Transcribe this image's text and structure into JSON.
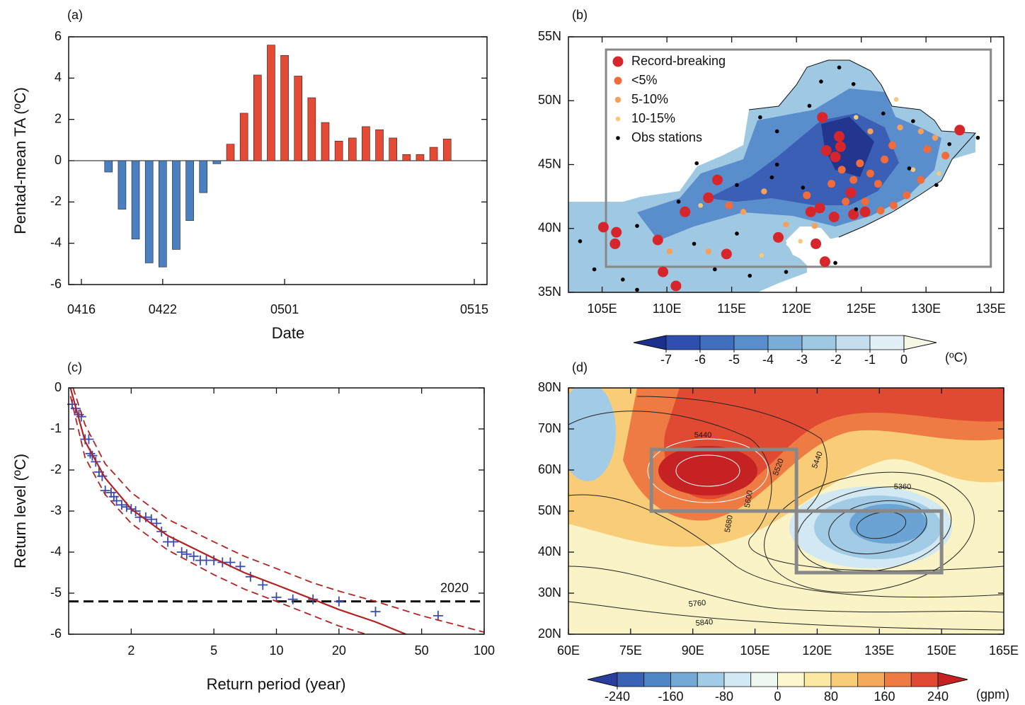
{
  "chart_data": [
    {
      "type": "bar",
      "panel": "(a)",
      "ylabel": "Pentad-mean TA (ºC)",
      "xlabel": "Date",
      "categories": [
        "0416",
        null,
        null,
        null,
        null,
        null,
        "0422",
        null,
        null,
        null,
        null,
        null,
        null,
        null,
        null,
        "0501",
        null,
        null,
        null,
        null,
        null,
        null,
        null,
        null,
        null,
        null,
        null,
        null,
        null,
        "0515"
      ],
      "values": [
        null,
        null,
        -0.55,
        -2.35,
        -3.8,
        -4.95,
        -5.15,
        -4.3,
        -2.9,
        -1.55,
        -0.15,
        0.8,
        2.3,
        4.15,
        5.6,
        5.1,
        4.1,
        3.05,
        1.85,
        0.95,
        1.1,
        1.65,
        1.5,
        1.1,
        0.3,
        0.3,
        0.65,
        1.05,
        null,
        null
      ],
      "colors": {
        "positive": "#e54b34",
        "negative": "#4a7fc0"
      },
      "ylim": [
        -6,
        6
      ],
      "yticks": [
        -6,
        -4,
        -2,
        0,
        2,
        4,
        6
      ]
    },
    {
      "type": "map",
      "panel": "(b)",
      "xlim": [
        102.4,
        136
      ],
      "ylim": [
        35,
        55
      ],
      "xticks": [
        {
          "value": 105,
          "label": "105E"
        },
        {
          "value": 110,
          "label": "110E"
        },
        {
          "value": 115,
          "label": "115E"
        },
        {
          "value": 120,
          "label": "120E"
        },
        {
          "value": 125,
          "label": "125E"
        },
        {
          "value": 130,
          "label": "130E"
        },
        {
          "value": 135,
          "label": "135E"
        }
      ],
      "yticks": [
        {
          "value": 35,
          "label": "35N"
        },
        {
          "value": 40,
          "label": "40N"
        },
        {
          "value": 45,
          "label": "45N"
        },
        {
          "value": 50,
          "label": "50N"
        },
        {
          "value": 55,
          "label": "55N"
        }
      ],
      "legend": "upper left",
      "series": [
        {
          "name": "Record-breaking",
          "color": "#d7262b",
          "size": 7.5,
          "x": [
            105.1,
            106.1,
            106.0,
            109.3,
            109.7,
            110.7,
            111.4,
            113.2,
            113.9,
            114.6,
            118.6,
            121.1,
            121.8,
            122.0,
            122.3,
            123.0,
            123.3,
            123.4,
            124.4,
            121.5,
            122.2,
            124.2,
            125.3,
            122.9,
            132.6
          ],
          "values": [
            40.1,
            39.7,
            38.8,
            39.1,
            36.6,
            35.5,
            41.3,
            42.4,
            43.8,
            38.0,
            39.3,
            41.3,
            41.6,
            48.7,
            46.1,
            45.6,
            47.2,
            46.4,
            41.1,
            38.8,
            37.4,
            42.8,
            41.3,
            40.9,
            47.7
          ]
        },
        {
          "name": "<5%",
          "color": "#f26b3a",
          "size": 5.5,
          "x": [
            123.5,
            124.9,
            125.7,
            126.3,
            126.8,
            124.4,
            125.3,
            127.5,
            128.5,
            126.5,
            129.6,
            122.7,
            123.8,
            130.1,
            131.5,
            114.8,
            120.8,
            127.4
          ],
          "values": [
            44.6,
            45.1,
            44.3,
            43.5,
            45.4,
            43.8,
            42.1,
            41.8,
            42.6,
            41.4,
            43.8,
            43.5,
            42.1,
            46.2,
            45.7,
            41.8,
            42.6,
            46.5
          ]
        },
        {
          "name": "5-10%",
          "color": "#f5a05a",
          "size": 4.2,
          "x": [
            115.9,
            119.2,
            128.0,
            130.7,
            113.2,
            110.2,
            117.5,
            125.7,
            129.6,
            121.4
          ],
          "values": [
            41.3,
            40.3,
            47.9,
            47.1,
            38.2,
            38.2,
            42.9,
            47.6,
            47.6,
            40.2
          ]
        },
        {
          "name": "10-15%",
          "color": "#f8c878",
          "size": 3.3,
          "x": [
            127.7,
            120.3,
            117.3,
            112.6,
            124.6,
            129.0,
            131.0
          ],
          "values": [
            50.1,
            39.0,
            37.9,
            41.8,
            48.7,
            44.6,
            44.3
          ]
        },
        {
          "name": "Obs stations",
          "color": "#000000",
          "size": 2.8,
          "x": [
            117.2,
            118.5,
            121.0,
            121.9,
            124.4,
            123.3,
            126.7,
            129.0,
            131.8,
            134.0,
            118.5,
            120.5,
            128.7,
            130.8,
            115.4,
            112.3,
            110.9,
            107.7,
            103.3,
            104.4,
            106.6,
            107.7,
            113.7,
            116.4,
            119.2,
            123.0,
            115.4,
            112.1,
            118.1,
            124.6
          ],
          "values": [
            48.7,
            47.6,
            49.6,
            51.5,
            51.3,
            52.6,
            49.0,
            48.4,
            46.6,
            47.1,
            45.0,
            43.2,
            44.7,
            43.4,
            43.4,
            45.1,
            42.1,
            40.2,
            39.0,
            36.8,
            36.0,
            35.2,
            36.8,
            36.3,
            36.6,
            37.3,
            39.6,
            38.8,
            44.0,
            41.5
          ]
        }
      ],
      "boxes": [
        {
          "lon": [
            105.3,
            135
          ],
          "lat": [
            37,
            54
          ]
        }
      ],
      "colorbar": {
        "ticks": [
          -7,
          -6,
          -5,
          -4,
          -3,
          -2,
          -1,
          0
        ],
        "colors": [
          "#1b2f8f",
          "#2e4fae",
          "#3f6fbe",
          "#5a8dcb",
          "#7aaed8",
          "#9fc8e3",
          "#c4def0",
          "#e2eff7",
          "#f6f7e4"
        ],
        "units": "(ºC)"
      }
    },
    {
      "type": "scatter",
      "panel": "(c)",
      "ylabel": "Return level (ºC)",
      "xlabel": "Return period (year)",
      "log_x": true,
      "xlim": [
        1,
        100
      ],
      "xticks": [
        2,
        5,
        10,
        20,
        50,
        100
      ],
      "ylim": [
        -6,
        0
      ],
      "yticks": [
        -6,
        -5,
        -4,
        -3,
        -2,
        -1,
        0
      ],
      "series": [
        {
          "color": "#3a4bb0",
          "marker": "+",
          "x": [
            1.04,
            1.08,
            1.12,
            1.15,
            1.2,
            1.25,
            1.27,
            1.3,
            1.35,
            1.4,
            1.45,
            1.5,
            1.6,
            1.65,
            1.7,
            1.8,
            1.9,
            2.0,
            2.1,
            2.2,
            2.35,
            2.5,
            2.65,
            2.8,
            3.0,
            3.2,
            3.5,
            3.7,
            4.0,
            4.3,
            4.6,
            5.0,
            5.5,
            6.0,
            6.7,
            7.5,
            8.6,
            10,
            12,
            15,
            20,
            30,
            60
          ],
          "values": [
            -0.4,
            -0.5,
            -0.65,
            -0.7,
            -1.25,
            -1.25,
            -1.6,
            -1.65,
            -1.8,
            -2.05,
            -2.15,
            -2.5,
            -2.55,
            -2.65,
            -2.75,
            -2.85,
            -2.9,
            -2.95,
            -3.0,
            -3.15,
            -3.15,
            -3.2,
            -3.3,
            -3.5,
            -3.75,
            -3.75,
            -4.0,
            -4.05,
            -4.1,
            -4.2,
            -4.2,
            -4.2,
            -4.25,
            -4.25,
            -4.35,
            -4.6,
            -4.8,
            -5.1,
            -5.15,
            -5.15,
            -5.2,
            -5.45,
            -5.55
          ]
        },
        {
          "color": "#b22222",
          "line": "solid",
          "x": [
            1.02,
            1.2,
            1.5,
            2,
            3,
            5,
            7,
            10,
            15,
            20,
            30,
            42
          ],
          "values": [
            0,
            -1.3,
            -2.2,
            -2.95,
            -3.6,
            -4.15,
            -4.5,
            -4.8,
            -5.15,
            -5.4,
            -5.7,
            -6
          ]
        },
        {
          "color": "#b22222",
          "line": "dashed",
          "x": [
            1.05,
            1.2,
            1.5,
            2,
            3,
            5,
            7,
            10,
            15,
            20,
            30,
            50,
            100
          ],
          "values": [
            0,
            -0.9,
            -1.85,
            -2.55,
            -3.2,
            -3.75,
            -4.1,
            -4.4,
            -4.75,
            -4.95,
            -5.2,
            -5.55,
            -5.95
          ]
        },
        {
          "color": "#b22222",
          "line": "dashed",
          "x": [
            1.02,
            1.2,
            1.5,
            2,
            3,
            5,
            7,
            10,
            15,
            20,
            27
          ],
          "values": [
            -0.2,
            -1.7,
            -2.6,
            -3.3,
            -3.95,
            -4.55,
            -4.9,
            -5.2,
            -5.55,
            -5.8,
            -6
          ]
        }
      ],
      "hline": {
        "value": -5.2,
        "label": "2020"
      }
    },
    {
      "type": "map",
      "panel": "(d)",
      "xlim": [
        60,
        165
      ],
      "ylim": [
        20,
        80
      ],
      "xticks": [
        {
          "value": 60,
          "label": "60E"
        },
        {
          "value": 75,
          "label": "75E"
        },
        {
          "value": 90,
          "label": "90E"
        },
        {
          "value": 105,
          "label": "105E"
        },
        {
          "value": 120,
          "label": "120E"
        },
        {
          "value": 135,
          "label": "135E"
        },
        {
          "value": 150,
          "label": "150E"
        },
        {
          "value": 165,
          "label": "165E"
        }
      ],
      "yticks": [
        {
          "value": 20,
          "label": "20N"
        },
        {
          "value": 30,
          "label": "30N"
        },
        {
          "value": 40,
          "label": "40N"
        },
        {
          "value": 50,
          "label": "50N"
        },
        {
          "value": 60,
          "label": "60N"
        },
        {
          "value": 70,
          "label": "70N"
        },
        {
          "value": 80,
          "label": "80N"
        }
      ],
      "boxes": [
        {
          "lon": [
            80,
            115
          ],
          "lat": [
            50,
            65
          ]
        },
        {
          "lon": [
            115,
            150
          ],
          "lat": [
            35,
            50
          ]
        }
      ],
      "annotations": [
        "5440",
        "5520",
        "5440",
        "5600",
        "5680",
        "5360",
        "5760",
        "5840"
      ],
      "colorbar": {
        "ticks": [
          -240,
          -160,
          -80,
          0,
          80,
          160,
          240
        ],
        "colors": [
          "#2a3e9e",
          "#3a63b5",
          "#4f86c6",
          "#74a9d6",
          "#a2cbe6",
          "#d2e8f2",
          "#eef6f2",
          "#fbf8cf",
          "#fbe8a2",
          "#f9cd78",
          "#f5a95a",
          "#ee7b43",
          "#e04a33",
          "#c62224"
        ],
        "units": "(gpm)"
      }
    }
  ]
}
